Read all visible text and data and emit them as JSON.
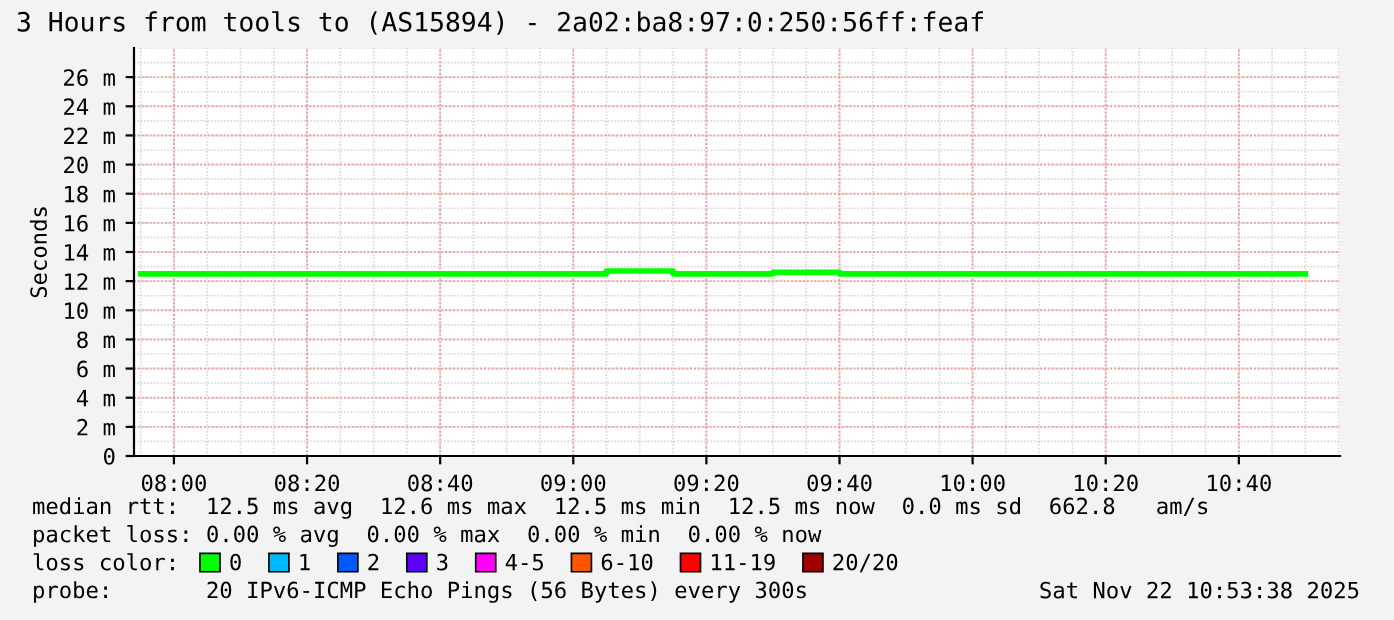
{
  "chart_data": {
    "type": "step",
    "title": "3 Hours from tools to (AS15894) - 2a02:ba8:97:0:250:56ff:feaf",
    "ylabel": "Seconds",
    "x": [
      7.9167,
      8.0,
      8.0833,
      8.1667,
      8.25,
      8.3333,
      8.4167,
      8.5,
      8.5833,
      8.6667,
      8.75,
      8.8333,
      8.9167,
      9.0,
      9.0833,
      9.1667,
      9.25,
      9.3333,
      9.4167,
      9.5,
      9.5833,
      9.6667,
      9.75,
      9.8333,
      9.9167,
      10.0,
      10.0833,
      10.1667,
      10.25,
      10.3333,
      10.4167,
      10.5,
      10.5833,
      10.6667,
      10.75,
      10.8333
    ],
    "series": [
      {
        "name": "0",
        "color": "#00ff00",
        "values": [
          12.5,
          12.5,
          12.5,
          12.5,
          12.5,
          12.5,
          12.5,
          12.5,
          12.5,
          12.5,
          12.5,
          12.5,
          12.5,
          12.5,
          12.7,
          12.7,
          12.5,
          12.5,
          12.5,
          12.6,
          12.6,
          12.5,
          12.5,
          12.5,
          12.5,
          12.5,
          12.5,
          12.5,
          12.5,
          12.5,
          12.5,
          12.5,
          12.5,
          12.5,
          12.5,
          12.5
        ]
      },
      {
        "name": "1",
        "color": "#00b8ff",
        "values": [
          null,
          null,
          null,
          null,
          null,
          null,
          null,
          null,
          null,
          null,
          null,
          null,
          null,
          null,
          null,
          null,
          null,
          null,
          null,
          null,
          null,
          null,
          null,
          null,
          null,
          null,
          null,
          null,
          null,
          null,
          null,
          null,
          null,
          null,
          null,
          null
        ]
      },
      {
        "name": "2",
        "color": "#0059ff",
        "values": [
          null,
          null,
          null,
          null,
          null,
          null,
          null,
          null,
          null,
          null,
          null,
          null,
          null,
          null,
          null,
          null,
          null,
          null,
          null,
          null,
          null,
          null,
          null,
          null,
          null,
          null,
          null,
          null,
          null,
          null,
          null,
          null,
          null,
          null,
          null,
          null
        ]
      },
      {
        "name": "3",
        "color": "#5e00ff",
        "values": [
          null,
          null,
          null,
          null,
          null,
          null,
          null,
          null,
          null,
          null,
          null,
          null,
          null,
          null,
          null,
          null,
          null,
          null,
          null,
          null,
          null,
          null,
          null,
          null,
          null,
          null,
          null,
          null,
          null,
          null,
          null,
          null,
          null,
          null,
          null,
          null
        ]
      },
      {
        "name": "4-5",
        "color": "#ff00ff",
        "values": [
          null,
          null,
          null,
          null,
          null,
          null,
          null,
          null,
          null,
          null,
          null,
          null,
          null,
          null,
          null,
          null,
          null,
          null,
          null,
          null,
          null,
          null,
          null,
          null,
          null,
          null,
          null,
          null,
          null,
          null,
          null,
          null,
          null,
          null,
          null,
          null
        ]
      },
      {
        "name": "6-10",
        "color": "#ff5500",
        "values": [
          null,
          null,
          null,
          null,
          null,
          null,
          null,
          null,
          null,
          null,
          null,
          null,
          null,
          null,
          null,
          null,
          null,
          null,
          null,
          null,
          null,
          null,
          null,
          null,
          null,
          null,
          null,
          null,
          null,
          null,
          null,
          null,
          null,
          null,
          null,
          null
        ]
      },
      {
        "name": "11-19",
        "color": "#ff0000",
        "values": [
          null,
          null,
          null,
          null,
          null,
          null,
          null,
          null,
          null,
          null,
          null,
          null,
          null,
          null,
          null,
          null,
          null,
          null,
          null,
          null,
          null,
          null,
          null,
          null,
          null,
          null,
          null,
          null,
          null,
          null,
          null,
          null,
          null,
          null,
          null,
          null
        ]
      },
      {
        "name": "20/20",
        "color": "#a10000",
        "values": [
          null,
          null,
          null,
          null,
          null,
          null,
          null,
          null,
          null,
          null,
          null,
          null,
          null,
          null,
          null,
          null,
          null,
          null,
          null,
          null,
          null,
          null,
          null,
          null,
          null,
          null,
          null,
          null,
          null,
          null,
          null,
          null,
          null,
          null,
          null,
          null
        ]
      }
    ],
    "legend_title": "loss color:",
    "legend": "bottom",
    "xlim": [
      7.9,
      10.92
    ],
    "xticks": [
      {
        "value": 8,
        "label": "08:00"
      },
      {
        "value": 8.3333,
        "label": "08:20"
      },
      {
        "value": 8.6667,
        "label": "08:40"
      },
      {
        "value": 9,
        "label": "09:00"
      },
      {
        "value": 9.3333,
        "label": "09:20"
      },
      {
        "value": 9.6667,
        "label": "09:40"
      },
      {
        "value": 10,
        "label": "10:00"
      },
      {
        "value": 10.3333,
        "label": "10:20"
      },
      {
        "value": 10.6667,
        "label": "10:40"
      }
    ],
    "ylim": [
      0,
      28
    ],
    "yticks": [
      0,
      {
        "value": 2,
        "label": "2 m"
      },
      {
        "value": 4,
        "label": "4 m"
      },
      {
        "value": 6,
        "label": "6 m"
      },
      {
        "value": 8,
        "label": "8 m"
      },
      {
        "value": 10,
        "label": "10 m"
      },
      {
        "value": 12,
        "label": "12 m"
      },
      {
        "value": 14,
        "label": "14 m"
      },
      {
        "value": 16,
        "label": "16 m"
      },
      {
        "value": 18,
        "label": "18 m"
      },
      {
        "value": 20,
        "label": "20 m"
      },
      {
        "value": 22,
        "label": "22 m"
      },
      {
        "value": 24,
        "label": "24 m"
      },
      {
        "value": 26,
        "label": "26 m"
      }
    ],
    "grid": true,
    "annotations": [
      "median rtt:  12.5 ms avg  12.6 ms max  12.5 ms min  12.5 ms now  0.0 ms sd  662.8   am/s",
      "packet loss: 0.00 % avg  0.00 % max  0.00 % min  0.00 % now",
      "probe:       20 IPv6-ICMP Echo Pings (56 Bytes) every 300s",
      "Sat Nov 22 10:53:38 2025"
    ]
  }
}
